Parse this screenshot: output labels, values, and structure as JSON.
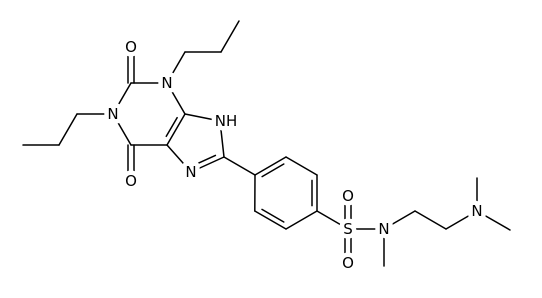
{
  "atom_labels": [
    "O",
    "N",
    "N",
    "NH",
    "O",
    "N",
    "S",
    "O",
    "O",
    "N",
    "N"
  ]
}
